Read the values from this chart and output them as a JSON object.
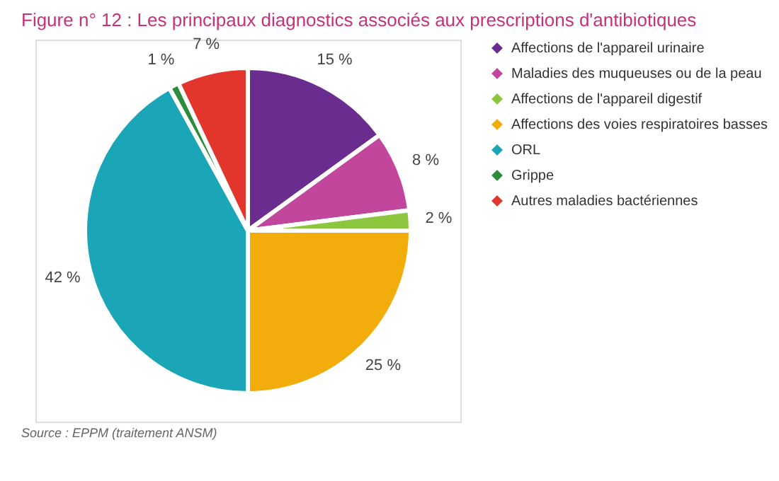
{
  "chart_data": {
    "type": "pie",
    "title": "Figure n° 12 : Les principaux diagnostics associés aux prescriptions d'antibiotiques",
    "categories": [
      "Affections de l'appareil urinaire",
      "Maladies des muqueuses ou de la peau",
      "Affections de l'appareil digestif",
      "Affections des voies respiratoires basses",
      "ORL",
      "Grippe",
      "Autres maladies bactériennes"
    ],
    "values": [
      15,
      8,
      2,
      25,
      42,
      1,
      7
    ],
    "value_labels": [
      "15 %",
      "8 %",
      "2 %",
      "25 %",
      "42 %",
      "1 %",
      "7 %"
    ],
    "colors": [
      "#6a2c8e",
      "#c2479c",
      "#8cc63e",
      "#f2ac0c",
      "#1aa6b7",
      "#2c8c3c",
      "#e2352b"
    ],
    "legend": "right",
    "annotations": [
      "Source : EPPM (traitement ANSM)"
    ]
  }
}
